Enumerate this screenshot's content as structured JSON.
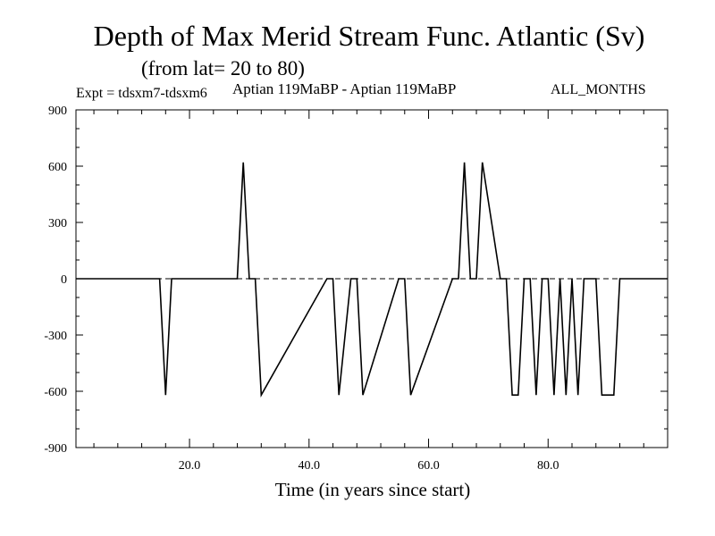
{
  "header": {
    "title": "Depth of Max Merid Stream Func. Atlantic (Sv)",
    "subtitle": "(from lat= 20 to 80)",
    "expt": "Expt = tdsxm7-tdsxm6",
    "runs": "Aptian   119MaBP - Aptian   119MaBP",
    "months": "ALL_MONTHS"
  },
  "chart_data": {
    "type": "line",
    "title": "Depth of Max Merid Stream Func. Atlantic (Sv)",
    "subtitle": "(from lat= 20 to 80)",
    "xlabel": "Time (in years since start)",
    "ylabel": "",
    "xlim": [
      1,
      100
    ],
    "ylim": [
      -900,
      900
    ],
    "xticks": [
      20,
      40,
      60,
      80
    ],
    "xtick_labels": [
      "20.0",
      "40.0",
      "60.0",
      "80.0"
    ],
    "yticks": [
      -900,
      -600,
      -300,
      0,
      300,
      600,
      900
    ],
    "ytick_labels": [
      "-900",
      "-600",
      "-300",
      "0",
      "300",
      "600",
      "900"
    ],
    "grid": false,
    "zero_line": "dashed",
    "series": [
      {
        "color": "#000000",
        "x": [
          1,
          15,
          16,
          17,
          28,
          29,
          30,
          31,
          32,
          43,
          44,
          45,
          47,
          48,
          49,
          55,
          56,
          57,
          64,
          65,
          66,
          67,
          68,
          69,
          72,
          73,
          74,
          75,
          76,
          77,
          78,
          79,
          80,
          81,
          82,
          83,
          84,
          85,
          86,
          88,
          89,
          90,
          91,
          92,
          100
        ],
        "y": [
          0,
          0,
          -620,
          0,
          0,
          620,
          0,
          0,
          -620,
          0,
          0,
          -620,
          0,
          0,
          -620,
          0,
          0,
          -620,
          0,
          0,
          620,
          0,
          0,
          620,
          0,
          0,
          -620,
          -620,
          0,
          0,
          -620,
          0,
          0,
          -620,
          0,
          -620,
          0,
          -620,
          0,
          0,
          -620,
          -620,
          -620,
          0,
          0
        ]
      }
    ]
  }
}
